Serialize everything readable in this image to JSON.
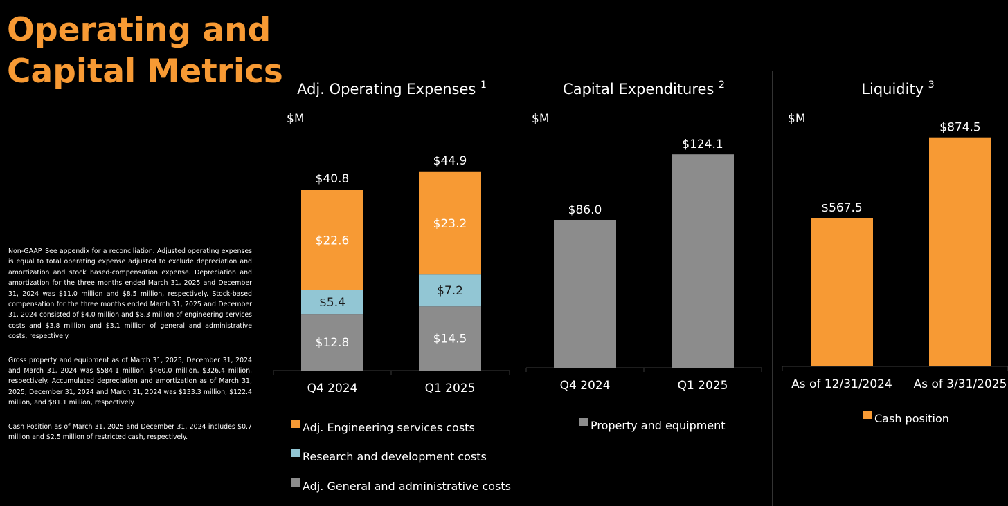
{
  "page": {
    "title_line1": "Operating and",
    "title_line2": "Capital Metrics",
    "footnotes": [
      "Non-GAAP. See appendix for a reconciliation. Adjusted operating expenses is equal to total operating expense adjusted to exclude depreciation and amortization and stock based-compensation expense. Depreciation and amortization for the three months ended March 31, 2025 and December 31, 2024 was $11.0 million and $8.5 million, respectively. Stock-based compensation for the three months ended March 31, 2025 and December 31, 2024 consisted of $4.0 million and $8.3 million of engineering services costs and $3.8 million and $3.1 million of general and administrative costs, respectively.",
      "Gross property and equipment as of March 31, 2025, December 31, 2024 and March 31, 2024 was $584.1 million, $460.0 million, $326.4 million, respectively. Accumulated depreciation and amortization as of March 31, 2025, December 31, 2024 and March 31, 2024 was $133.3 million, $122.4 million, and $81.1 million, respectively.",
      "Cash Position as of March 31, 2025 and December 31, 2024 includes $0.7 million and $2.5 million of restricted cash, respectively."
    ],
    "colors": {
      "title": "#f79a34",
      "text": "#ffffff",
      "background": "#000000",
      "axis": "#3a3a3a"
    }
  },
  "chart_data": [
    {
      "type": "bar",
      "stacked": true,
      "title": "Adj. Operating Expenses",
      "title_sup": "1",
      "unit_label": "$M",
      "categories": [
        "Q4 2024",
        "Q1 2025"
      ],
      "series": [
        {
          "name": "Adj. General and administrative costs",
          "values": [
            12.8,
            14.5
          ],
          "labels": [
            "$12.8",
            "$14.5"
          ],
          "color": "#8c8c8c"
        },
        {
          "name": "Research and development costs",
          "values": [
            5.4,
            7.2
          ],
          "labels": [
            "$5.4",
            "$7.2"
          ],
          "color": "#92c6d4"
        },
        {
          "name": "Adj. Engineering services costs",
          "values": [
            22.6,
            23.2
          ],
          "labels": [
            "$22.6",
            "$23.2"
          ],
          "color": "#f79a34"
        }
      ],
      "totals": [
        40.8,
        44.9
      ],
      "total_labels": [
        "$40.8",
        "$44.9"
      ],
      "legend_order": [
        "Adj. Engineering services costs",
        "Research and development costs",
        "Adj. General and administrative costs"
      ],
      "legend_placement": "bottom",
      "grid": false
    },
    {
      "type": "bar",
      "title": "Capital Expenditures",
      "title_sup": "2",
      "unit_label": "$M",
      "categories": [
        "Q4 2024",
        "Q1 2025"
      ],
      "series": [
        {
          "name": "Property and equipment",
          "values": [
            86.0,
            124.1
          ],
          "labels": [
            "$86.0",
            "$124.1"
          ],
          "color": "#8c8c8c"
        }
      ],
      "legend_placement": "bottom",
      "grid": false
    },
    {
      "type": "bar",
      "title": "Liquidity",
      "title_sup": "3",
      "unit_label": "$M",
      "categories": [
        "As of 12/31/2024",
        "As of 3/31/2025"
      ],
      "series": [
        {
          "name": "Cash position",
          "values": [
            567.5,
            874.5
          ],
          "labels": [
            "$567.5",
            "$874.5"
          ],
          "color": "#f79a34"
        }
      ],
      "legend_placement": "bottom",
      "grid": false
    }
  ]
}
